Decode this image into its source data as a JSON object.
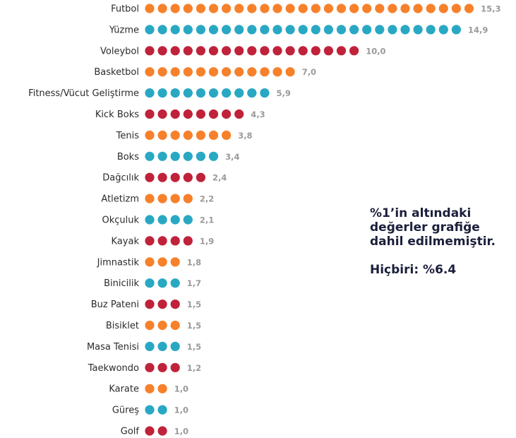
{
  "chart_data": {
    "type": "dot",
    "categories": [
      "Futbol",
      "Yüzme",
      "Voleybol",
      "Basketbol",
      "Fitness/Vücut Geliştirme",
      "Kick Boks",
      "Tenis",
      "Boks",
      "Dağcılık",
      "Atletizm",
      "Okçuluk",
      "Kayak",
      "Jimnastik",
      "Binicilik",
      "Buz Pateni",
      "Bisiklet",
      "Masa Tenisi",
      "Taekwondo",
      "Karate",
      "Güreş",
      "Golf"
    ],
    "values": [
      15.3,
      14.9,
      10.0,
      7.0,
      5.9,
      4.3,
      3.8,
      3.4,
      2.4,
      2.2,
      2.1,
      1.9,
      1.8,
      1.7,
      1.5,
      1.5,
      1.5,
      1.2,
      1.0,
      1.0,
      1.0
    ],
    "value_labels": [
      "15,3",
      "14,9",
      "10,0",
      "7,0",
      "5,9",
      "4,3",
      "3,8",
      "3,4",
      "2,4",
      "2,2",
      "2,1",
      "1,9",
      "1,8",
      "1,7",
      "1,5",
      "1,5",
      "1,5",
      "1,2",
      "1,0",
      "1,0",
      "1,0"
    ],
    "dot_counts": [
      26,
      25,
      17,
      12,
      10,
      8,
      7,
      6,
      5,
      4,
      4,
      4,
      3,
      3,
      3,
      3,
      3,
      3,
      2,
      2,
      2
    ],
    "color_cycle": [
      "#F7812B",
      "#29A8C4",
      "#C0223A"
    ]
  },
  "note": {
    "line1": "%1’in altındaki",
    "line2": "değerler grafiğe",
    "line3": "dahil edilmemiştir.",
    "line4": "Hiçbiri: %6.4"
  }
}
